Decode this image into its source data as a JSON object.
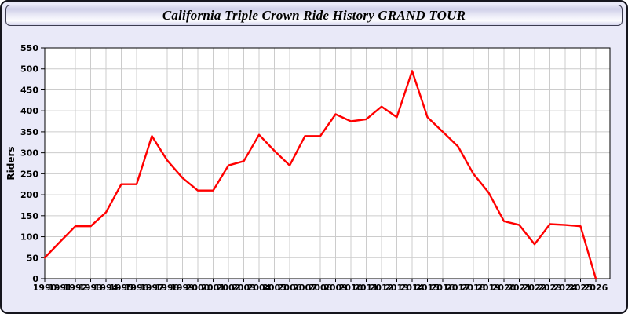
{
  "window": {
    "title": "California Triple Crown Ride History GRAND TOUR"
  },
  "colors": {
    "line": "#ff0000",
    "plot_background": "#ffffff",
    "grid": "#cccccc",
    "axis": "#000000",
    "panel_background": "#e9e9f8",
    "titlebar_border": "#3c3c50"
  },
  "chart_data": {
    "type": "line",
    "title": "California Triple Crown Ride History GRAND TOUR",
    "xlabel": "",
    "ylabel": "Riders",
    "ylim": [
      0,
      550
    ],
    "ytick_step": 50,
    "grid": true,
    "legend": "none",
    "x": [
      1990,
      1991,
      1992,
      1993,
      1994,
      1995,
      1996,
      1997,
      1998,
      1999,
      2000,
      2001,
      2002,
      2003,
      2004,
      2005,
      2006,
      2007,
      2008,
      2009,
      2010,
      2011,
      2012,
      2013,
      2014,
      2015,
      2016,
      2017,
      2018,
      2019,
      2020,
      2021,
      2022,
      2023,
      2024,
      2025,
      2026
    ],
    "series": [
      {
        "name": "Riders",
        "color": "#ff0000",
        "values": [
          50,
          88,
          125,
          125,
          158,
          225,
          225,
          340,
          282,
          240,
          210,
          210,
          270,
          280,
          343,
          305,
          270,
          340,
          340,
          392,
          375,
          380,
          410,
          385,
          495,
          385,
          350,
          315,
          250,
          205,
          137,
          128,
          82,
          130,
          128,
          125,
          0
        ]
      }
    ]
  }
}
